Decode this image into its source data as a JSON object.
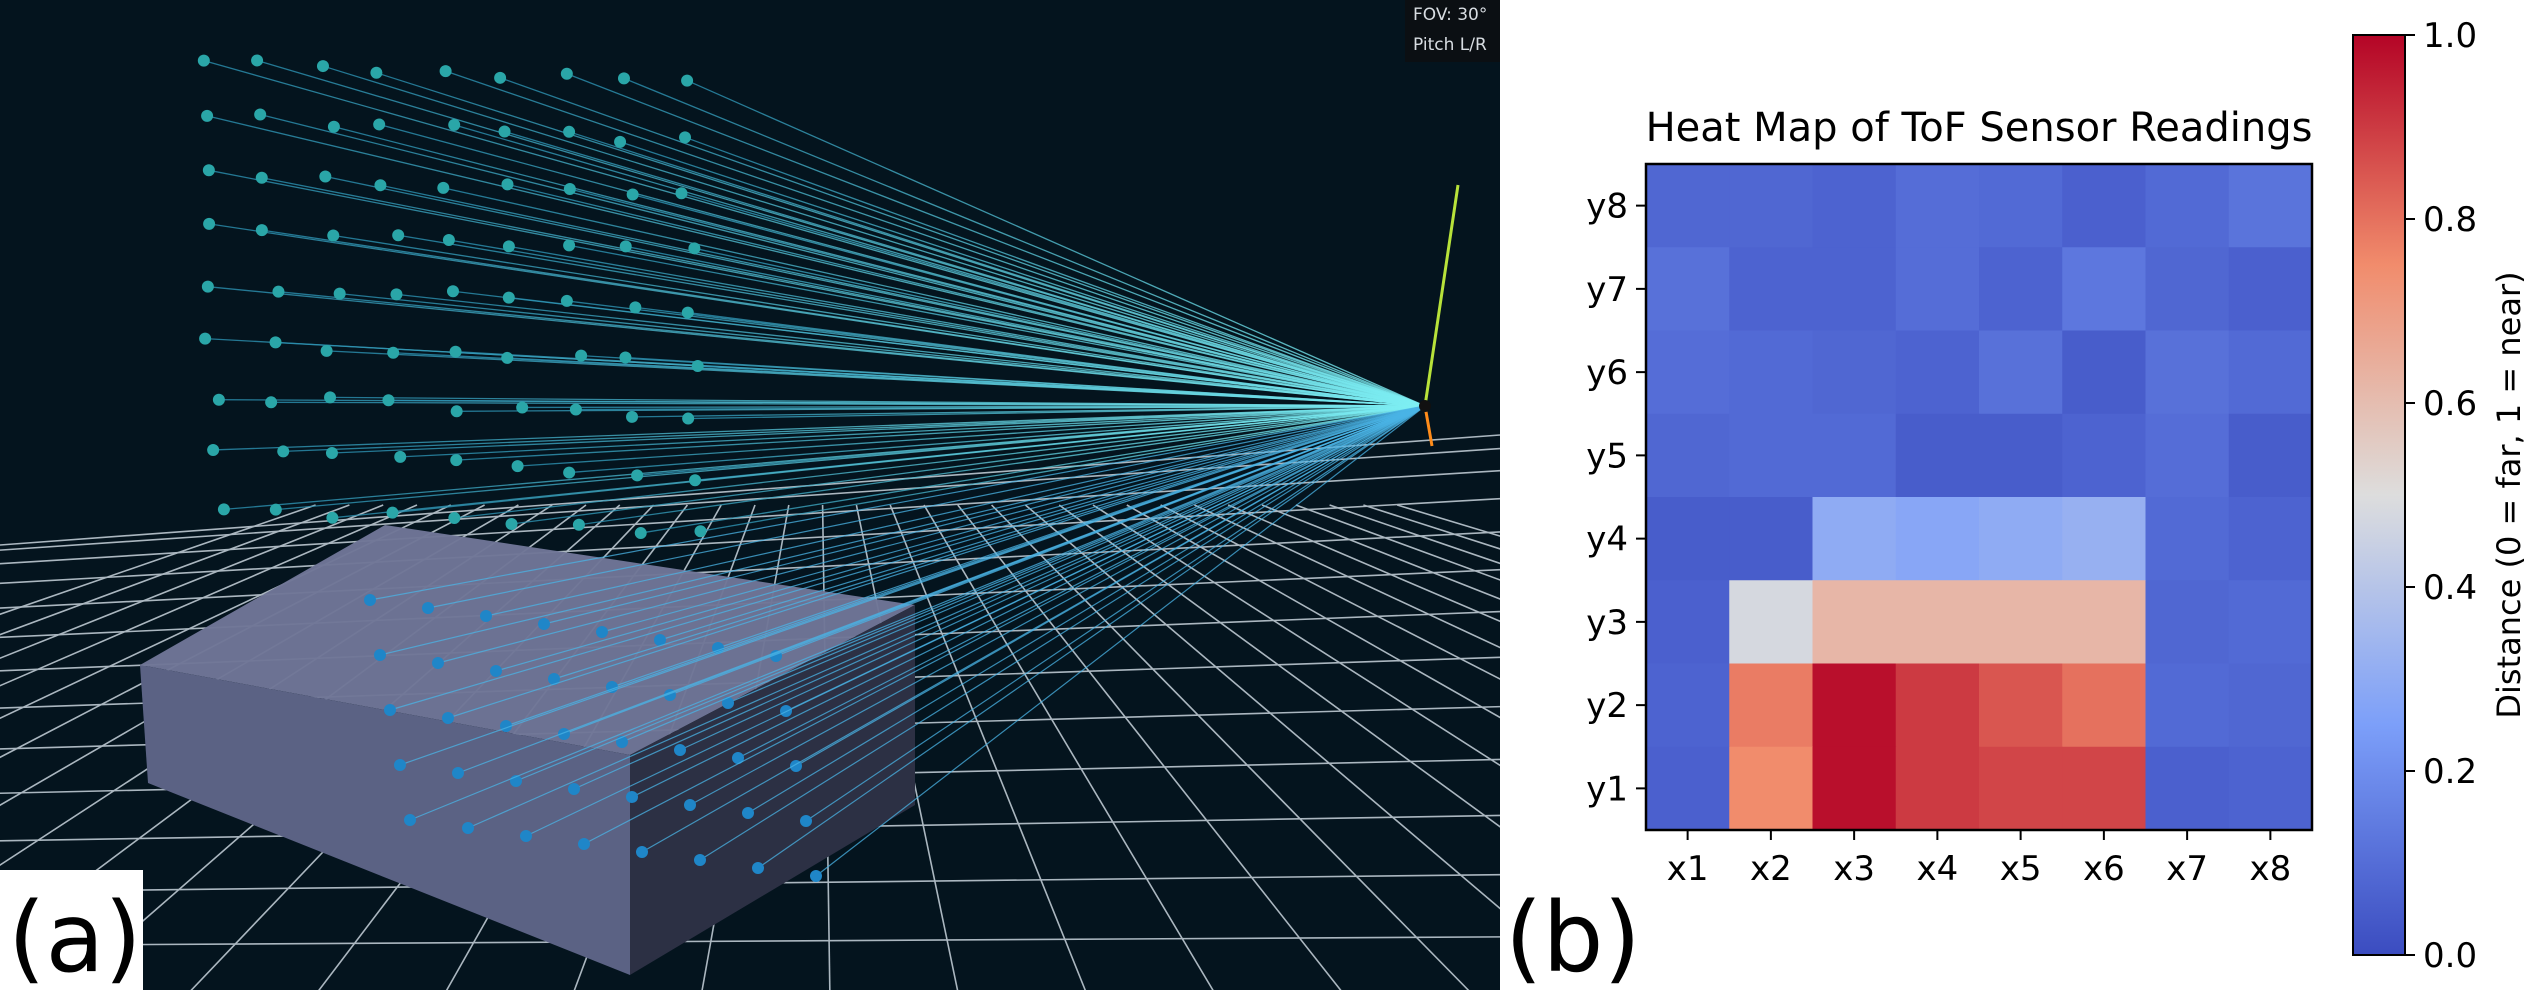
{
  "panel_a": {
    "label": "(a)",
    "hud_line1": "FOV: 30°",
    "hud_line2": "Pitch L/R",
    "colors": {
      "background": "#04141e",
      "grid": "#c9d4dd",
      "ray": "#49cfe0",
      "box_top": "#6f7697",
      "box_front": "#5b6284",
      "box_side": "#2c3044"
    }
  },
  "panel_b": {
    "label": "(b)"
  },
  "chart_data": {
    "type": "heatmap",
    "title": "Heat Map of ToF Sensor Readings",
    "x_categories": [
      "x1",
      "x2",
      "x3",
      "x4",
      "x5",
      "x6",
      "x7",
      "x8"
    ],
    "y_categories": [
      "y8",
      "y7",
      "y6",
      "y5",
      "y4",
      "y3",
      "y2",
      "y1"
    ],
    "values": [
      [
        0.08,
        0.08,
        0.07,
        0.1,
        0.09,
        0.06,
        0.09,
        0.12
      ],
      [
        0.11,
        0.07,
        0.07,
        0.1,
        0.07,
        0.13,
        0.08,
        0.06
      ],
      [
        0.1,
        0.09,
        0.08,
        0.07,
        0.11,
        0.05,
        0.11,
        0.09
      ],
      [
        0.08,
        0.09,
        0.09,
        0.05,
        0.05,
        0.07,
        0.1,
        0.05
      ],
      [
        0.05,
        0.05,
        0.3,
        0.28,
        0.3,
        0.32,
        0.09,
        0.07
      ],
      [
        0.06,
        0.48,
        0.62,
        0.62,
        0.62,
        0.62,
        0.08,
        0.09
      ],
      [
        0.07,
        0.78,
        0.98,
        0.9,
        0.85,
        0.8,
        0.09,
        0.08
      ],
      [
        0.06,
        0.75,
        0.98,
        0.9,
        0.88,
        0.88,
        0.06,
        0.07
      ]
    ],
    "colorbar": {
      "label": "Distance (0 = far, 1 = near)",
      "ticks": [
        "0.0",
        "0.2",
        "0.4",
        "0.6",
        "0.8",
        "1.0"
      ],
      "tick_values": [
        0,
        0.2,
        0.4,
        0.6,
        0.8,
        1.0
      ],
      "range": [
        0,
        1
      ],
      "colormap": "coolwarm"
    }
  }
}
